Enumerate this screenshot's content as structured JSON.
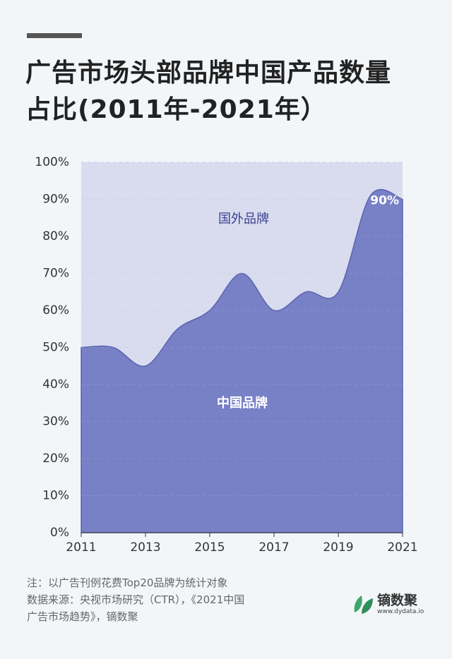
{
  "chart_data": {
    "type": "area",
    "title": [
      "广告市场头部品牌中国产品数量",
      "占比(2011年-2021年）"
    ],
    "x": [
      2011,
      2012,
      2013,
      2014,
      2015,
      2016,
      2017,
      2018,
      2019,
      2020,
      2021
    ],
    "series": [
      {
        "name": "中国品牌",
        "color": "#7880c6",
        "values": [
          50,
          50,
          45,
          55,
          60,
          70,
          60,
          65,
          65,
          91,
          90
        ],
        "value_labels": [
          null,
          null,
          null,
          null,
          null,
          null,
          null,
          null,
          null,
          null,
          "90%"
        ]
      }
    ],
    "remainder": {
      "name": "国外品牌",
      "color": "#d9dcef"
    },
    "xlim": [
      2011,
      2021
    ],
    "xticks": [
      2011,
      2013,
      2015,
      2017,
      2019,
      2021
    ],
    "ylim": [
      0,
      100
    ],
    "yticks": [
      {
        "value": 0,
        "label": "0%"
      },
      {
        "value": 10,
        "label": "10%"
      },
      {
        "value": 20,
        "label": "20%"
      },
      {
        "value": 30,
        "label": "30%"
      },
      {
        "value": 40,
        "label": "40%"
      },
      {
        "value": 50,
        "label": "50%"
      },
      {
        "value": 60,
        "label": "60%"
      },
      {
        "value": 70,
        "label": "70%"
      },
      {
        "value": 80,
        "label": "80%"
      },
      {
        "value": 90,
        "label": "90%"
      },
      {
        "value": 100,
        "label": "100%"
      }
    ],
    "grid": true,
    "notes": [
      "注：以广告刊例花费Top20品牌为统计对象",
      "数据来源：央视市场研究（CTR），《2021中国",
      "广告市场趋势》，镝数聚"
    ],
    "logo": {
      "name": "镝数聚",
      "url": "www.dydata.io"
    }
  }
}
